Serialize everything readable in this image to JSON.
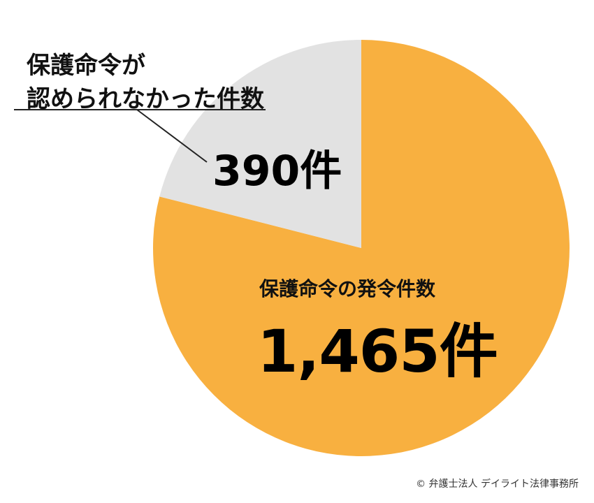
{
  "chart_data": {
    "type": "pie",
    "slices": [
      {
        "label": "保護命令の発令件数",
        "value": 1465,
        "value_label": "1,465件",
        "color": "#f8b040"
      },
      {
        "label": "保護命令が認められなかった件数",
        "label_lines": [
          "保護命令が",
          "認められなかった件数"
        ],
        "value": 390,
        "value_label": "390件",
        "color": "#e2e2e2"
      }
    ]
  },
  "credit": "© 弁護士法人 デイライト法律事務所"
}
